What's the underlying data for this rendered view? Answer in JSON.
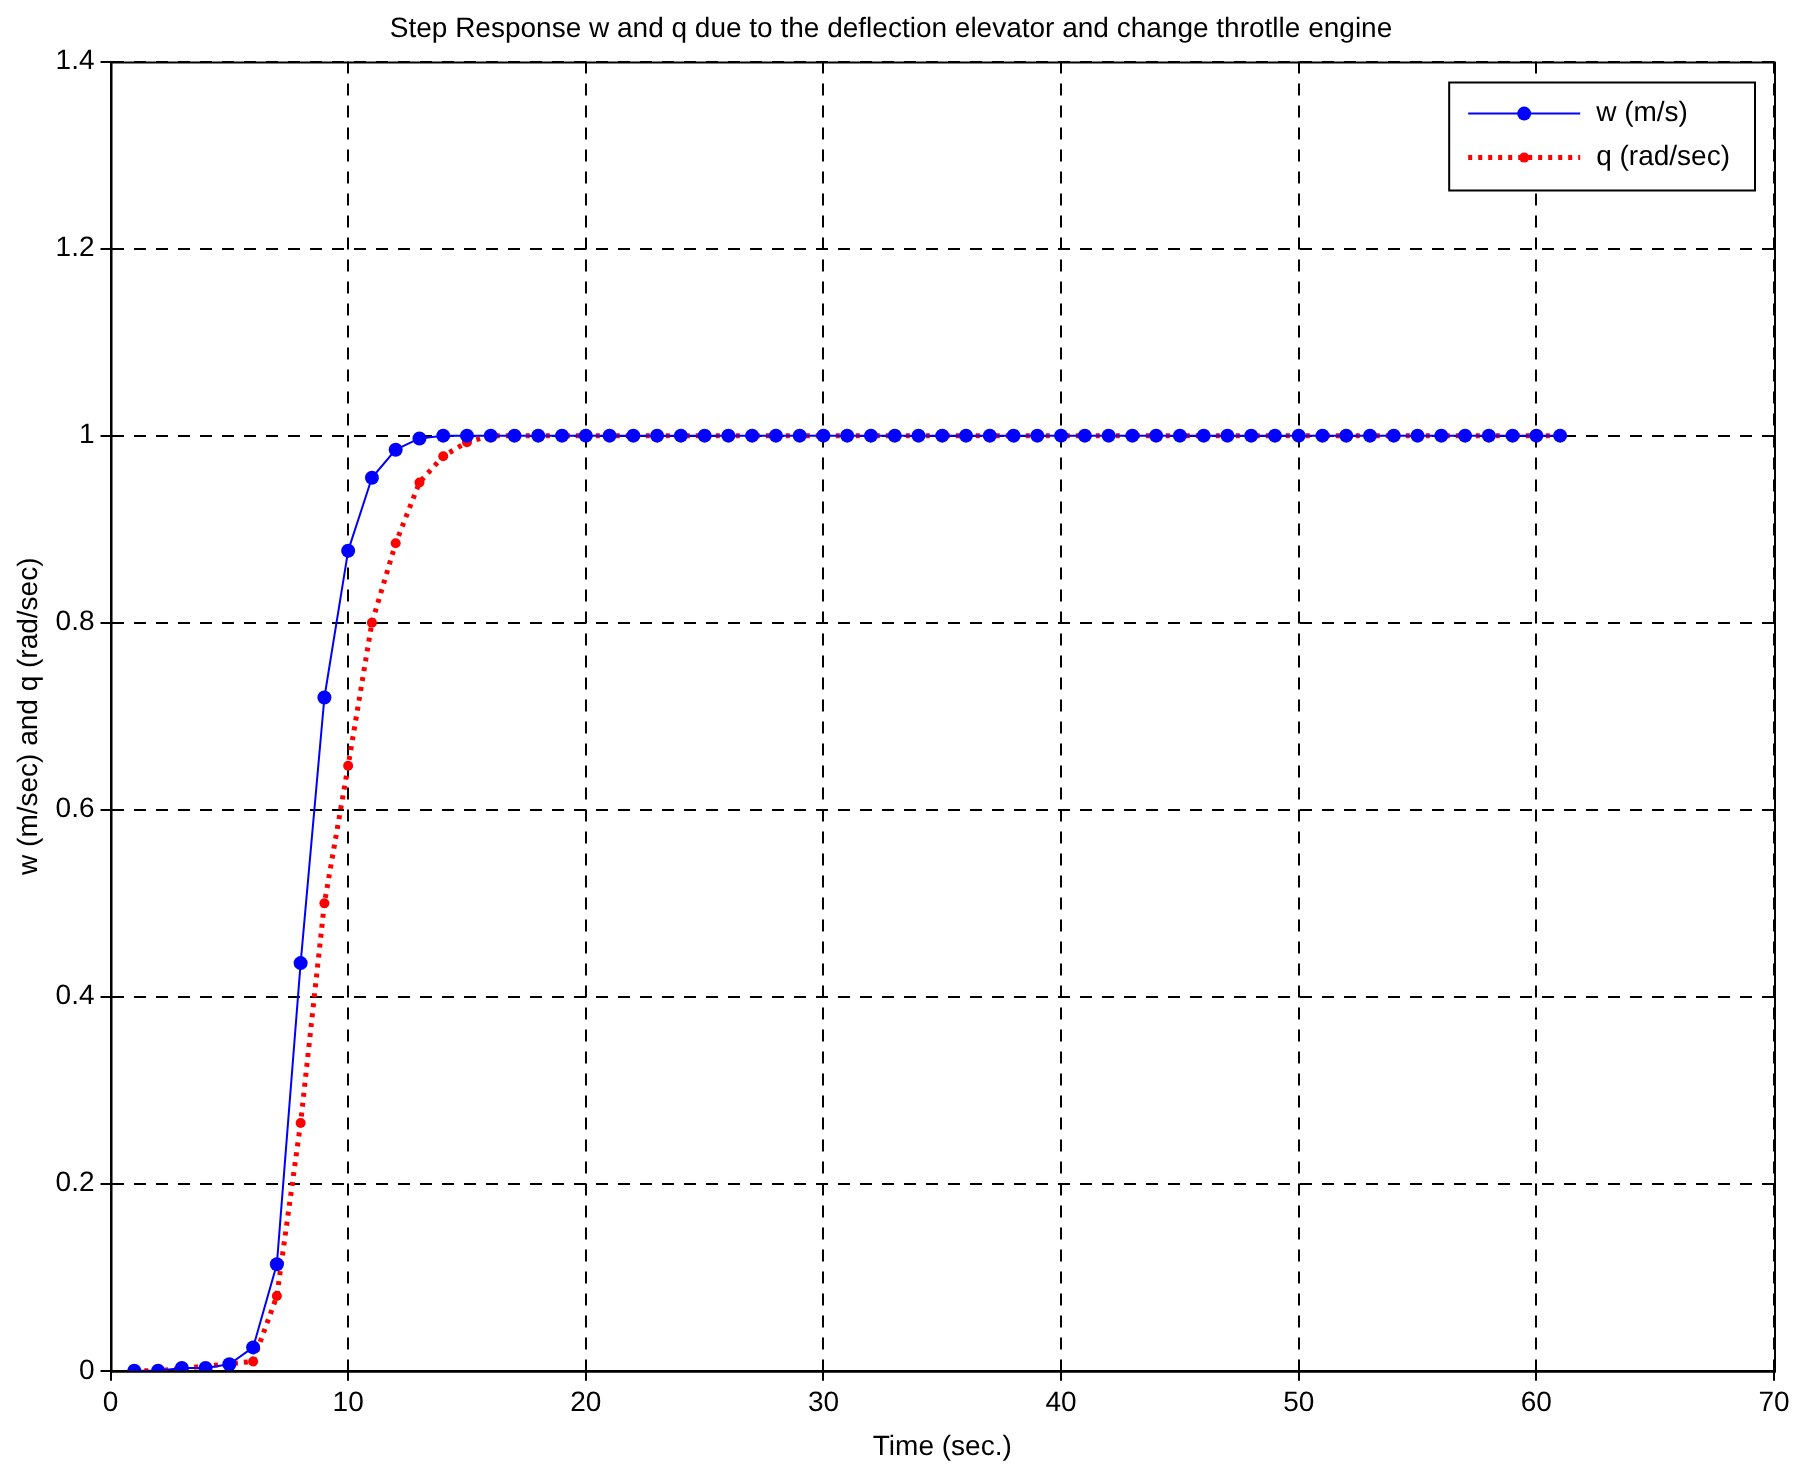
{
  "chart_data": {
    "type": "line",
    "title": "Step Response w and q due to the deflection elevator and change throtlle engine",
    "xlabel": "Time (sec.)",
    "ylabel": "w (m/sec) and q (rad/sec)",
    "x": [
      1,
      2,
      3,
      4,
      5,
      6,
      7,
      8,
      9,
      10,
      11,
      12,
      13,
      14,
      15,
      16,
      17,
      18,
      19,
      20,
      21,
      22,
      23,
      24,
      25,
      26,
      27,
      28,
      29,
      30,
      31,
      32,
      33,
      34,
      35,
      36,
      37,
      38,
      39,
      40,
      41,
      42,
      43,
      44,
      45,
      46,
      47,
      48,
      49,
      50,
      51,
      52,
      53,
      54,
      55,
      56,
      57,
      58,
      59,
      60,
      61
    ],
    "series": [
      {
        "name": "w (m/s)",
        "color": "#0000ff",
        "line_style": "solid",
        "values": [
          0,
          0,
          0.003,
          0.003,
          0.007,
          0.025,
          0.114,
          0.436,
          0.72,
          0.877,
          0.955,
          0.985,
          0.997,
          1,
          1,
          1,
          1,
          1,
          1,
          1,
          1,
          1,
          1,
          1,
          1,
          1,
          1,
          1,
          1,
          1,
          1,
          1,
          1,
          1,
          1,
          1,
          1,
          1,
          1,
          1,
          1,
          1,
          1,
          1,
          1,
          1,
          1,
          1,
          1,
          1,
          1,
          1,
          1,
          1,
          1,
          1,
          1,
          1,
          1,
          1,
          1
        ]
      },
      {
        "name": "q (rad/sec)",
        "color": "#ff0000",
        "line_style": "dotted",
        "values": [
          0,
          0,
          null,
          null,
          null,
          0.01,
          0.08,
          0.265,
          0.5,
          0.647,
          0.8,
          0.885,
          0.95,
          0.978,
          0.993,
          1,
          1,
          1,
          1,
          1,
          1,
          1,
          1,
          1,
          1,
          1,
          1,
          1,
          1,
          1,
          1,
          1,
          1,
          1,
          1,
          1,
          1,
          1,
          1,
          1,
          1,
          1,
          1,
          1,
          1,
          1,
          1,
          1,
          1,
          1,
          1,
          1,
          1,
          1,
          1,
          1,
          1,
          1,
          1,
          1,
          1
        ]
      }
    ],
    "xlim": [
      0,
      70
    ],
    "xticks": [
      0,
      10,
      20,
      30,
      40,
      50,
      60,
      70
    ],
    "ylim": [
      0,
      1.4
    ],
    "yticks": [
      0,
      0.2,
      0.4,
      0.6,
      0.8,
      1,
      1.2,
      1.4
    ],
    "grid": true,
    "legend": "top right",
    "marker": "circle"
  }
}
